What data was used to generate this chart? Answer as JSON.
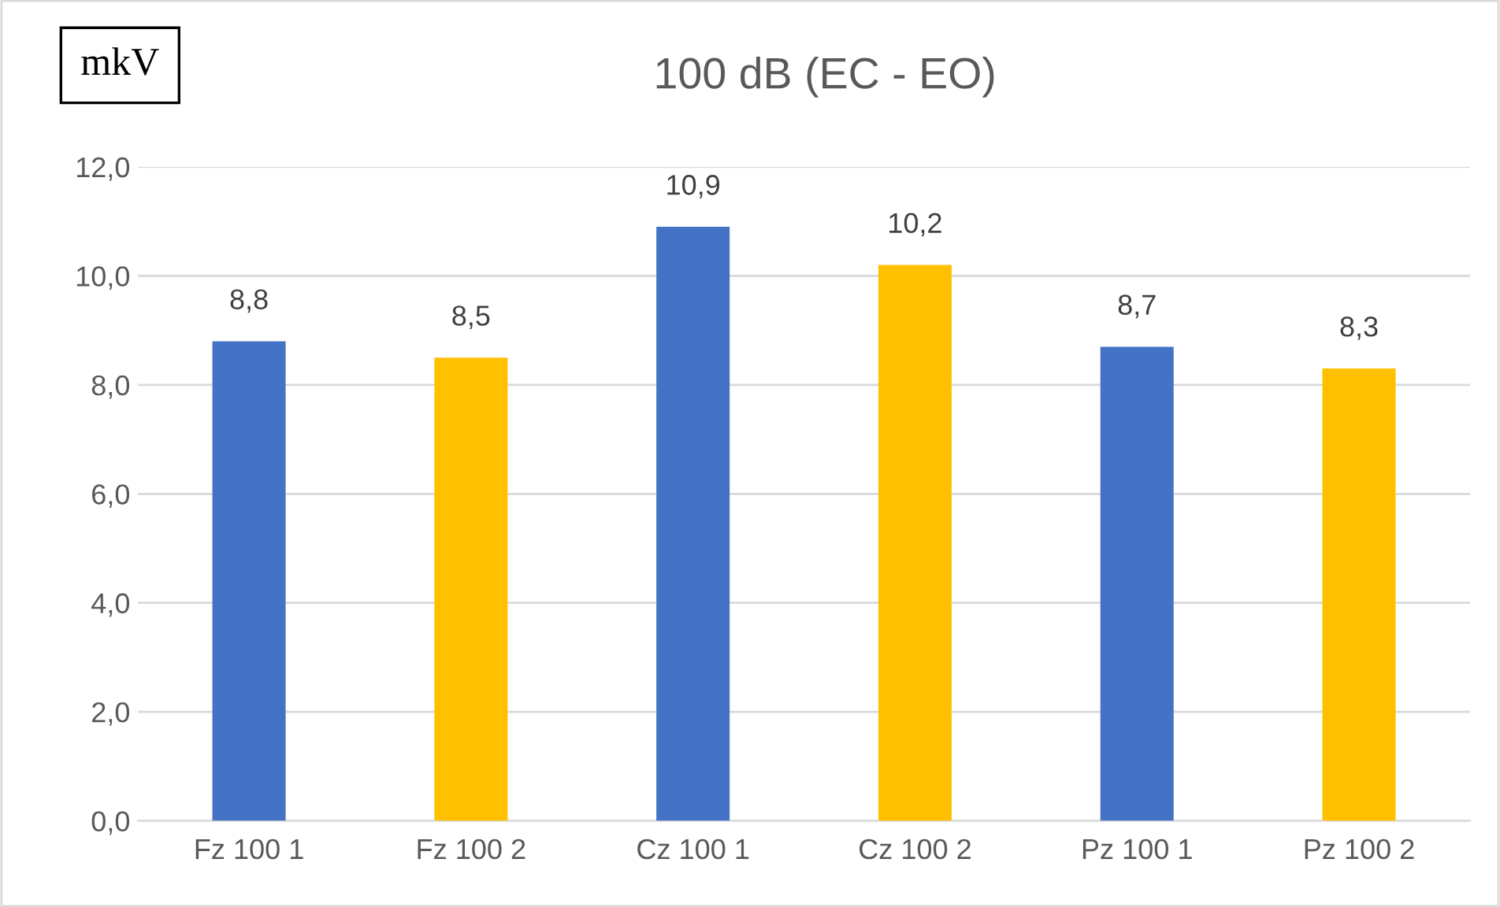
{
  "chart_data": {
    "type": "bar",
    "title": "100 dB (EC - EO)",
    "ylabel": "mkV",
    "categories": [
      "Fz 100 1",
      "Fz 100 2",
      "Cz 100 1",
      "Cz 100 2",
      "Pz 100 1",
      "Pz 100 2"
    ],
    "values": [
      8.8,
      8.5,
      10.9,
      10.2,
      8.7,
      8.3
    ],
    "value_labels": [
      "8,8",
      "8,5",
      "10,9",
      "10,2",
      "8,7",
      "8,3"
    ],
    "colors": [
      "#4472c4",
      "#ffc000",
      "#4472c4",
      "#ffc000",
      "#4472c4",
      "#ffc000"
    ],
    "ylim": [
      0,
      12
    ],
    "yticks": [
      {
        "value": 0,
        "label": "0,0"
      },
      {
        "value": 2,
        "label": "2,0"
      },
      {
        "value": 4,
        "label": "4,0"
      },
      {
        "value": 6,
        "label": "6,0"
      },
      {
        "value": 8,
        "label": "8,0"
      },
      {
        "value": 10,
        "label": "10,0"
      },
      {
        "value": 12,
        "label": "12,0"
      }
    ],
    "grid": "y",
    "legend": false
  }
}
